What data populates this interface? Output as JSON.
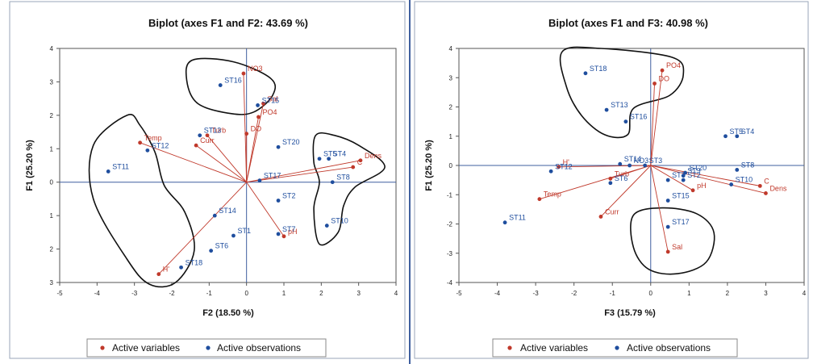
{
  "chart_data": [
    {
      "type": "scatter",
      "title": "Biplot (axes F1 and F2: 43.69 %)",
      "xlabel": "F2 (18.50 %)",
      "ylabel": "F1 (25.20 %)",
      "xlim": [
        -5,
        4
      ],
      "ylim": [
        -3,
        4
      ],
      "xticks": [
        -5,
        -4,
        -3,
        -2,
        -1,
        0,
        1,
        2,
        3,
        4
      ],
      "yticks": [
        -3,
        -2,
        -1,
        0,
        1,
        2,
        3,
        4
      ],
      "ytick_labels": [
        "3",
        "2",
        "1",
        "0",
        "1",
        "2",
        "3",
        "4"
      ],
      "grid": false,
      "legend_position": "bottom",
      "series": [
        {
          "name": "Active variables",
          "color": "#c0392b",
          "kind": "vectors",
          "points": [
            {
              "label": "NO3",
              "x": -0.08,
              "y": 3.25
            },
            {
              "label": "Sal",
              "x": 0.45,
              "y": 2.35
            },
            {
              "label": "PO4",
              "x": 0.32,
              "y": 1.95
            },
            {
              "label": "DO",
              "x": 0.0,
              "y": 1.45
            },
            {
              "label": "Turb",
              "x": -1.05,
              "y": 1.4
            },
            {
              "label": "Curr",
              "x": -1.35,
              "y": 1.1
            },
            {
              "label": "Temp",
              "x": -2.85,
              "y": 1.18
            },
            {
              "label": "Dens",
              "x": 3.05,
              "y": 0.65
            },
            {
              "label": "C",
              "x": 2.85,
              "y": 0.45
            },
            {
              "label": "pH",
              "x": 1.0,
              "y": -1.62
            },
            {
              "label": "H'",
              "x": -2.35,
              "y": -2.75
            }
          ]
        },
        {
          "name": "Active observations",
          "color": "#1f4e9e",
          "kind": "points",
          "points": [
            {
              "label": "ST16",
              "x": -0.7,
              "y": 2.9
            },
            {
              "label": "ST15",
              "x": 0.3,
              "y": 2.3
            },
            {
              "label": "ST13",
              "x": -1.25,
              "y": 1.4
            },
            {
              "label": "ST20",
              "x": 0.85,
              "y": 1.05
            },
            {
              "label": "ST5",
              "x": 1.95,
              "y": 0.7
            },
            {
              "label": "ST4",
              "x": 2.2,
              "y": 0.7
            },
            {
              "label": "ST12",
              "x": -2.65,
              "y": 0.95
            },
            {
              "label": "ST11",
              "x": -3.7,
              "y": 0.32
            },
            {
              "label": "ST17",
              "x": 0.35,
              "y": 0.05
            },
            {
              "label": "ST8",
              "x": 2.3,
              "y": 0.0
            },
            {
              "label": "ST2",
              "x": 0.85,
              "y": -0.55
            },
            {
              "label": "ST14",
              "x": -0.85,
              "y": -1.0
            },
            {
              "label": "ST10",
              "x": 2.15,
              "y": -1.3
            },
            {
              "label": "ST7",
              "x": 0.85,
              "y": -1.55
            },
            {
              "label": "ST1",
              "x": -0.35,
              "y": -1.6
            },
            {
              "label": "ST6",
              "x": -0.95,
              "y": -2.05
            },
            {
              "label": "ST18",
              "x": -1.75,
              "y": -2.55
            }
          ]
        }
      ],
      "groups": [
        [
          [
            -1.45,
            3.65
          ],
          [
            -0.35,
            3.6
          ],
          [
            0.65,
            3.1
          ],
          [
            0.7,
            2.6
          ],
          [
            0.2,
            2.1
          ],
          [
            -0.4,
            2.05
          ],
          [
            -1.3,
            2.35
          ],
          [
            -1.6,
            3.05
          ]
        ],
        [
          [
            -3.2,
            2.0
          ],
          [
            -2.85,
            1.7
          ],
          [
            -2.45,
            0.9
          ],
          [
            -2.2,
            -0.1
          ],
          [
            -1.65,
            -0.9
          ],
          [
            -1.4,
            -2.05
          ],
          [
            -1.9,
            -3.0
          ],
          [
            -2.6,
            -3.05
          ],
          [
            -3.2,
            -2.3
          ],
          [
            -4.1,
            -0.5
          ],
          [
            -4.1,
            1.1
          ]
        ],
        [
          [
            1.85,
            1.4
          ],
          [
            2.35,
            1.4
          ],
          [
            3.0,
            1.1
          ],
          [
            3.7,
            0.45
          ],
          [
            2.9,
            -0.15
          ],
          [
            2.6,
            -0.7
          ],
          [
            2.45,
            -1.5
          ],
          [
            1.95,
            -1.85
          ],
          [
            1.8,
            -0.8
          ],
          [
            1.95,
            0.0
          ],
          [
            1.8,
            0.6
          ]
        ]
      ]
    },
    {
      "type": "scatter",
      "title": "Biplot (axes F1 and F3: 40.98 %)",
      "xlabel": "F3 (15.79 %)",
      "ylabel": "F1 (25.20 %)",
      "xlim": [
        -5,
        4
      ],
      "ylim": [
        -4,
        4
      ],
      "xticks": [
        -5,
        -4,
        -3,
        -2,
        -1,
        0,
        1,
        2,
        3,
        4
      ],
      "yticks": [
        -4,
        -3,
        -2,
        -1,
        0,
        1,
        2,
        3,
        4
      ],
      "ytick_labels": [
        "-4",
        "-3",
        "-2",
        "-1",
        "0",
        "1",
        "2",
        "3",
        "4"
      ],
      "grid": false,
      "legend_position": "bottom",
      "series": [
        {
          "name": "Active variables",
          "color": "#c0392b",
          "kind": "vectors",
          "points": [
            {
              "label": "DO",
              "x": 0.1,
              "y": 2.8
            },
            {
              "label": "PO4",
              "x": 0.3,
              "y": 3.25
            },
            {
              "label": "H'",
              "x": -2.4,
              "y": -0.05
            },
            {
              "label": "Turb",
              "x": -1.05,
              "y": -0.45
            },
            {
              "label": "Temp",
              "x": -2.9,
              "y": -1.15
            },
            {
              "label": "Curr",
              "x": -1.3,
              "y": -1.75
            },
            {
              "label": "pH",
              "x": 1.1,
              "y": -0.85
            },
            {
              "label": "Dens",
              "x": 3.0,
              "y": -0.95
            },
            {
              "label": "C",
              "x": 2.85,
              "y": -0.7
            },
            {
              "label": "Sal",
              "x": 0.45,
              "y": -2.95
            }
          ]
        },
        {
          "name": "Active observations",
          "color": "#1f4e9e",
          "kind": "points",
          "points": [
            {
              "label": "ST18",
              "x": -1.7,
              "y": 3.15
            },
            {
              "label": "ST13",
              "x": -1.15,
              "y": 1.9
            },
            {
              "label": "ST16",
              "x": -0.65,
              "y": 1.5
            },
            {
              "label": "ST5",
              "x": 1.95,
              "y": 1.0
            },
            {
              "label": "ST4",
              "x": 2.25,
              "y": 1.0
            },
            {
              "label": "ST14",
              "x": -0.8,
              "y": 0.05
            },
            {
              "label": "NO3",
              "x": -0.55,
              "y": 0.0
            },
            {
              "label": "ST3",
              "x": -0.15,
              "y": 0.0
            },
            {
              "label": "ST12",
              "x": -2.6,
              "y": -0.2
            },
            {
              "label": "ST20",
              "x": 0.9,
              "y": -0.25
            },
            {
              "label": "ST9",
              "x": 0.85,
              "y": -0.35
            },
            {
              "label": "ST7",
              "x": 0.45,
              "y": -0.5
            },
            {
              "label": "ST2",
              "x": 0.85,
              "y": -0.5
            },
            {
              "label": "ST8",
              "x": 2.25,
              "y": -0.15
            },
            {
              "label": "ST10",
              "x": 2.1,
              "y": -0.65
            },
            {
              "label": "ST6",
              "x": -1.05,
              "y": -0.6
            },
            {
              "label": "ST15",
              "x": 0.45,
              "y": -1.2
            },
            {
              "label": "ST17",
              "x": 0.45,
              "y": -2.1
            },
            {
              "label": "ST11",
              "x": -3.8,
              "y": -1.95
            }
          ]
        }
      ],
      "groups": [
        [
          [
            -2.3,
            3.9
          ],
          [
            -1.3,
            4.0
          ],
          [
            0.55,
            3.7
          ],
          [
            0.85,
            3.1
          ],
          [
            0.5,
            2.4
          ],
          [
            -0.45,
            1.95
          ],
          [
            -0.6,
            1.05
          ],
          [
            -1.2,
            1.05
          ],
          [
            -1.8,
            1.7
          ],
          [
            -2.2,
            2.7
          ]
        ],
        [
          [
            -0.45,
            -1.7
          ],
          [
            0.3,
            -1.45
          ],
          [
            1.2,
            -1.65
          ],
          [
            1.65,
            -2.3
          ],
          [
            1.45,
            -3.3
          ],
          [
            0.7,
            -3.7
          ],
          [
            -0.05,
            -3.55
          ],
          [
            -0.45,
            -2.8
          ]
        ]
      ]
    }
  ],
  "legend": {
    "variables_label": "Active variables",
    "observations_label": "Active observations"
  }
}
